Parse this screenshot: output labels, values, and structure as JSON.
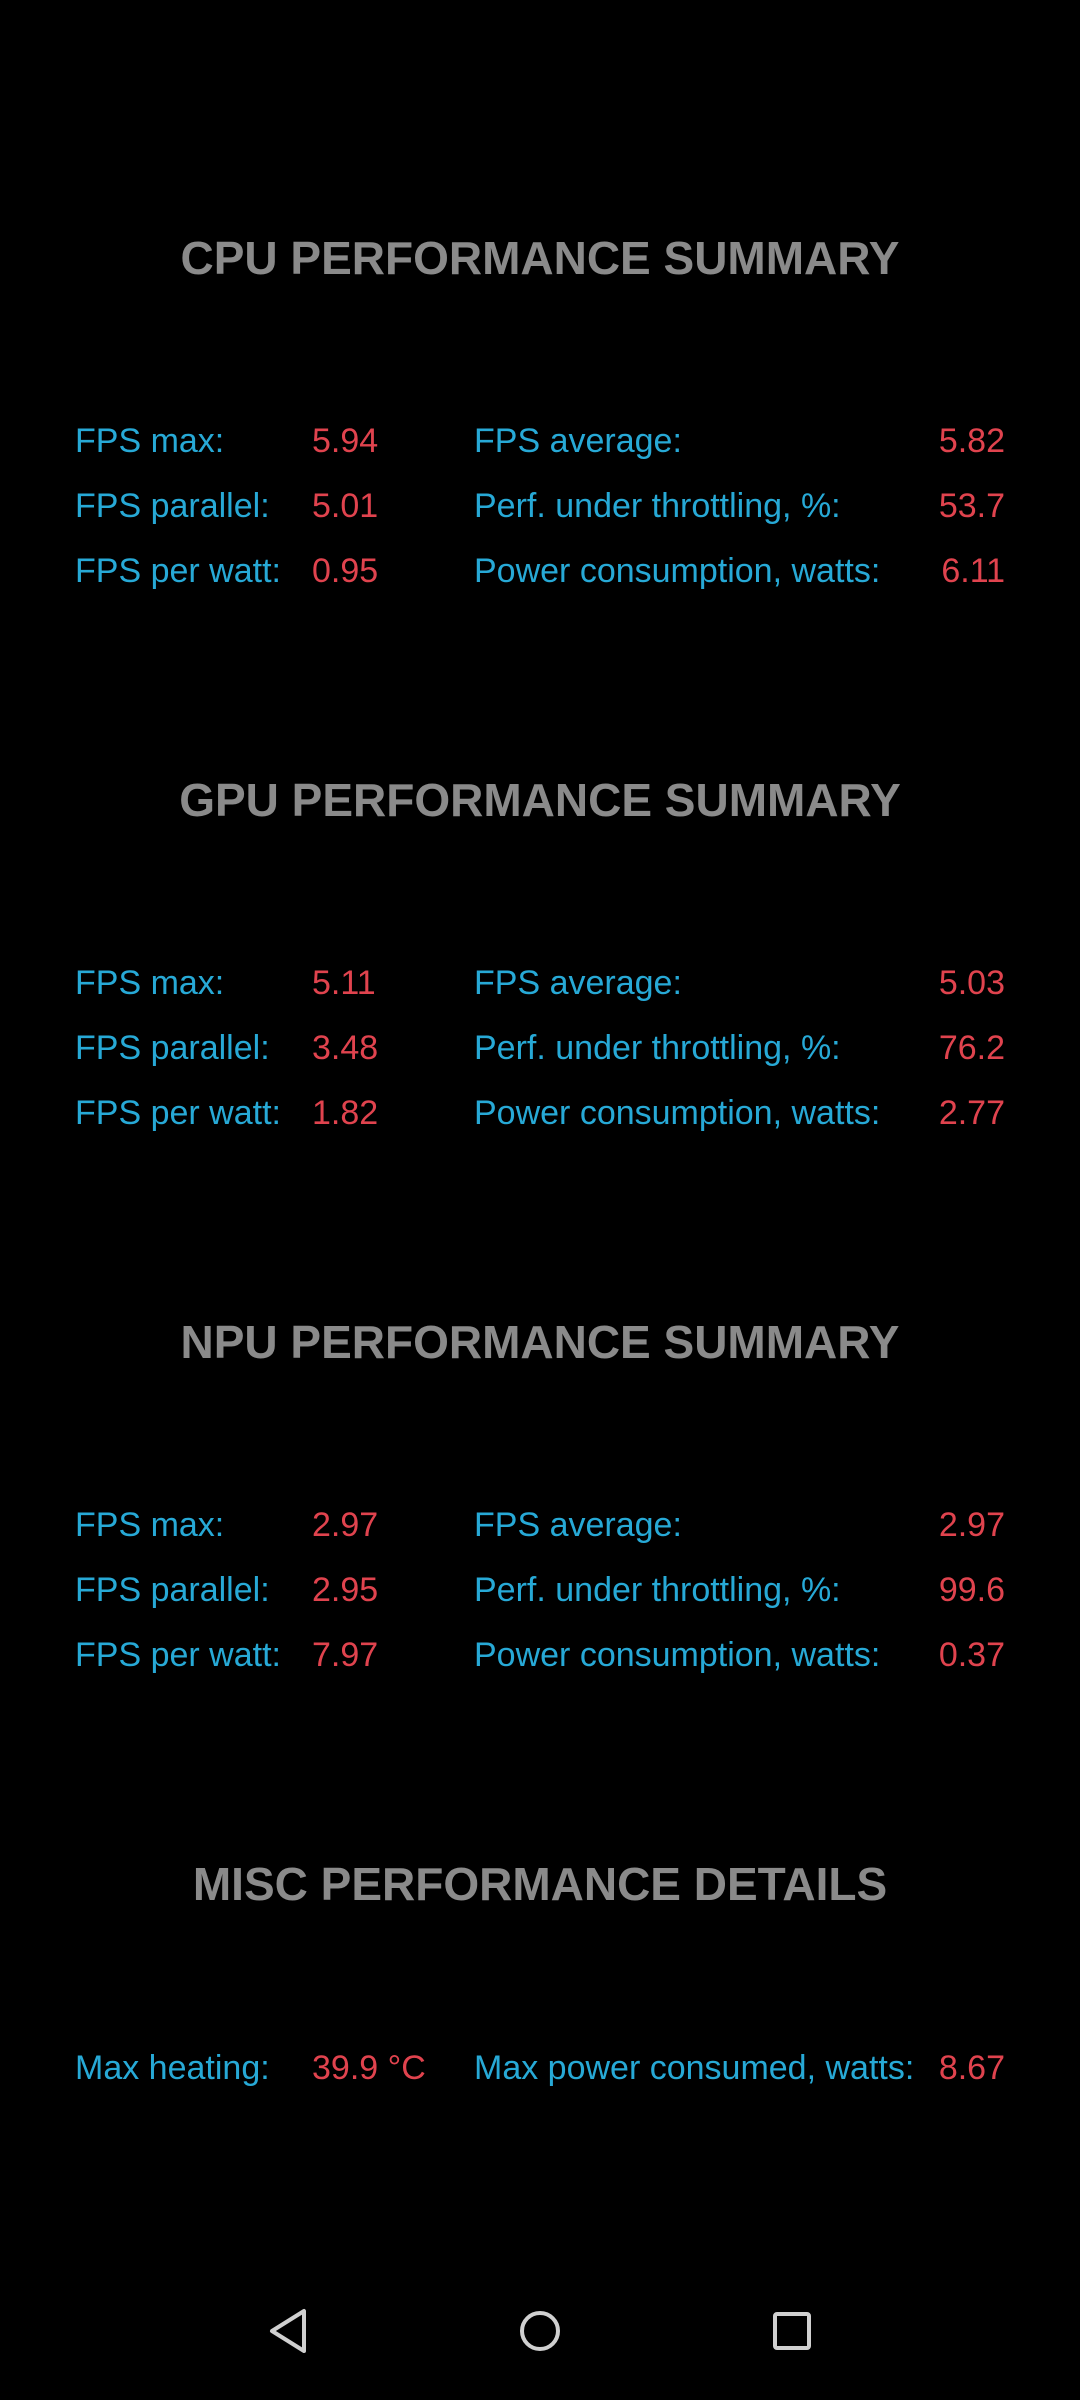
{
  "sections": [
    {
      "title": "CPU PERFORMANCE SUMMARY",
      "rows": [
        {
          "label1": "FPS max:",
          "value1": "5.94",
          "label2": "FPS average:",
          "value2": "5.82"
        },
        {
          "label1": "FPS parallel:",
          "value1": "5.01",
          "label2": "Perf. under throttling, %:",
          "value2": "53.7"
        },
        {
          "label1": "FPS per watt:",
          "value1": "0.95",
          "label2": "Power consumption, watts:",
          "value2": "6.11"
        }
      ]
    },
    {
      "title": "GPU PERFORMANCE SUMMARY",
      "rows": [
        {
          "label1": "FPS max:",
          "value1": "5.11",
          "label2": "FPS average:",
          "value2": "5.03"
        },
        {
          "label1": "FPS parallel:",
          "value1": "3.48",
          "label2": "Perf. under throttling, %:",
          "value2": "76.2"
        },
        {
          "label1": "FPS per watt:",
          "value1": "1.82",
          "label2": "Power consumption, watts:",
          "value2": "2.77"
        }
      ]
    },
    {
      "title": "NPU PERFORMANCE SUMMARY",
      "rows": [
        {
          "label1": "FPS max:",
          "value1": "2.97",
          "label2": "FPS average:",
          "value2": "2.97"
        },
        {
          "label1": "FPS parallel:",
          "value1": "2.95",
          "label2": "Perf. under throttling, %:",
          "value2": "99.6"
        },
        {
          "label1": "FPS per watt:",
          "value1": "7.97",
          "label2": "Power consumption, watts:",
          "value2": "0.37"
        }
      ]
    },
    {
      "title": "MISC PERFORMANCE DETAILS",
      "rows": [
        {
          "label1": "Max heating:",
          "value1": "39.9 °C",
          "label2": "Max power consumed, watts:",
          "value2": "8.67"
        }
      ]
    }
  ],
  "colors": {
    "background": "#000000",
    "title": "#8a8a8a",
    "label": "#27a9d6",
    "value": "#e0434e",
    "nav_icon": "#d0d0d0"
  },
  "navbar": {
    "icons": [
      "back-triangle-icon",
      "home-circle-icon",
      "recents-square-icon"
    ]
  }
}
